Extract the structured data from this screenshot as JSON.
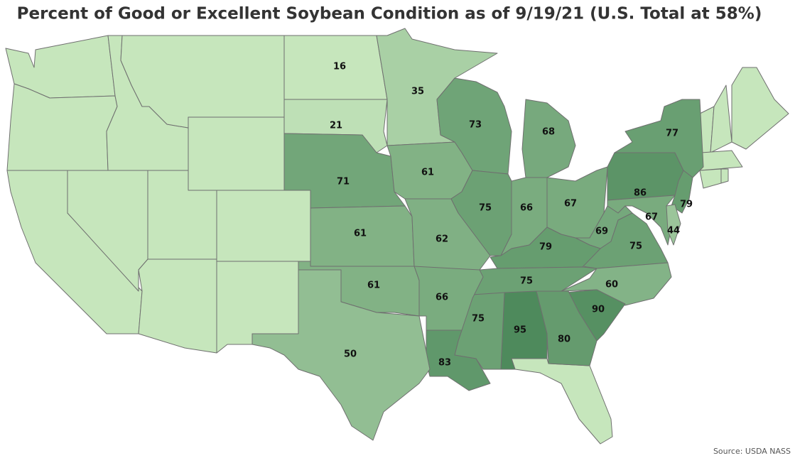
{
  "chart_data": {
    "type": "choropleth",
    "title": "Percent of Good or Excellent Soybean Condition as of 9/19/21 (U.S. Total at 58%)",
    "source": "Source: USDA NASS",
    "values": [
      16,
      21,
      35,
      71,
      61,
      73,
      68,
      61,
      62,
      75,
      66,
      67,
      86,
      77,
      79,
      67,
      44,
      69,
      75,
      79,
      75,
      60,
      90,
      80,
      95,
      75,
      83,
      66,
      61,
      50
    ],
    "color_range": [
      "#c6e6bc",
      "#4e8a5c"
    ]
  }
}
